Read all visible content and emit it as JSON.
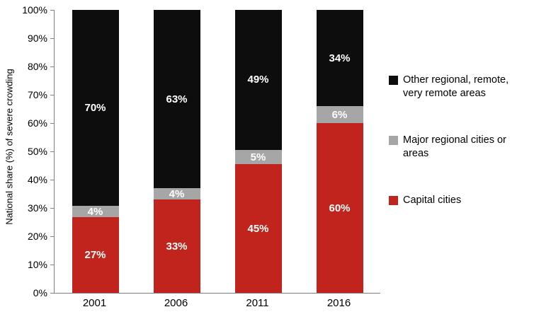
{
  "chart_data": {
    "type": "bar",
    "stacked": true,
    "title": "",
    "xlabel": "",
    "ylabel": "National share (%) of severe crowding",
    "categories": [
      "2001",
      "2006",
      "2011",
      "2016"
    ],
    "series": [
      {
        "name": "Capital cities",
        "color": "#c0241c",
        "values": [
          27,
          33,
          45,
          60
        ]
      },
      {
        "name": "Major regional cities or areas",
        "color": "#a6a6a6",
        "values": [
          4,
          4,
          5,
          6
        ]
      },
      {
        "name": "Other regional, remote, very remote areas",
        "color": "#0d0d0d",
        "values": [
          70,
          63,
          49,
          34
        ]
      }
    ],
    "legend_entries_top_to_bottom": [
      "Other regional, remote, very remote areas",
      "Major regional cities or areas",
      "Capital cities"
    ],
    "data_label_suffix": "%",
    "data_label_color": "#ffffff",
    "ylim": [
      0,
      100
    ],
    "ytick_step": 10,
    "ytick_suffix": "%",
    "axis_color": "#808080",
    "grid": false,
    "legend_position": "right",
    "background": "#ffffff"
  }
}
